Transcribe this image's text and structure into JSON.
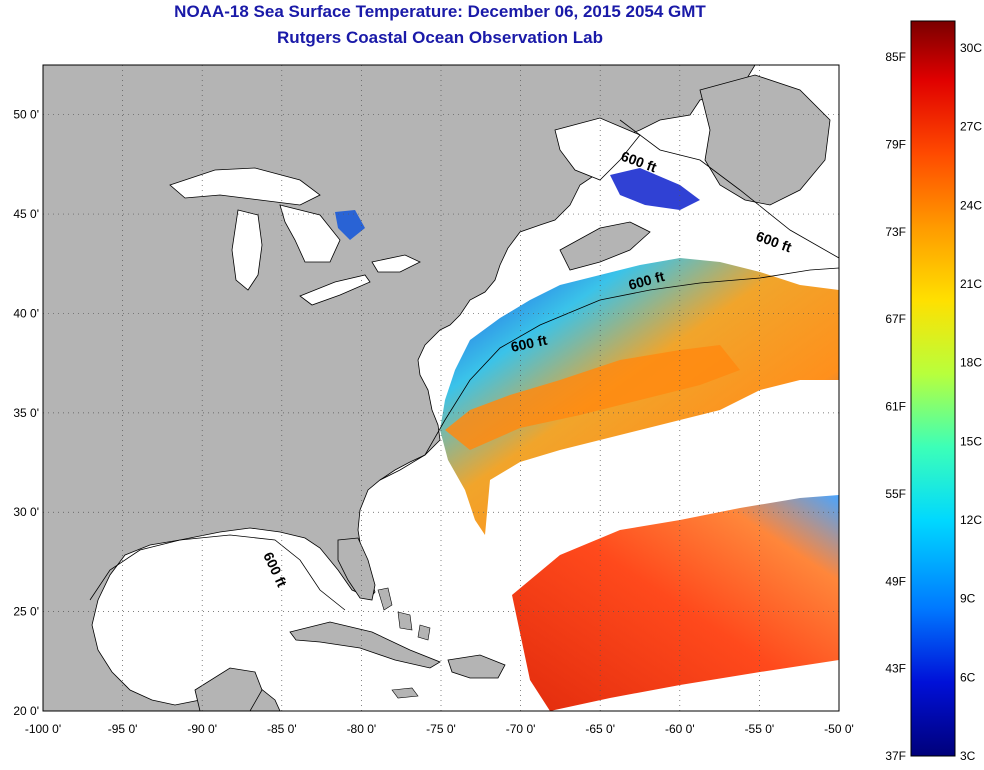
{
  "title": "NOAA-18 Sea Surface Temperature:  December 06, 2015 2054 GMT",
  "subtitle": "Rutgers Coastal Ocean Observation Lab",
  "axes": {
    "x_ticks": [
      "-100 0'",
      "-95 0'",
      "-90 0'",
      "-85 0'",
      "-80 0'",
      "-75 0'",
      "-70 0'",
      "-65 0'",
      "-60 0'",
      "-55 0'",
      "-50 0'"
    ],
    "y_ticks": [
      "50 0'",
      "45 0'",
      "40 0'",
      "35 0'",
      "30 0'",
      "25 0'",
      "20 0'"
    ],
    "lon_range": [
      -100,
      -50
    ],
    "lat_range": [
      20,
      52.5
    ],
    "grid": "dotted"
  },
  "contour_labels": [
    "600 ft",
    "600 ft",
    "600 ft",
    "600 ft",
    "600 ft"
  ],
  "colorbar": {
    "f_labels": [
      "85F",
      "79F",
      "73F",
      "67F",
      "61F",
      "55F",
      "49F",
      "43F",
      "37F"
    ],
    "c_labels": [
      "30C",
      "27C",
      "24C",
      "21C",
      "18C",
      "15C",
      "12C",
      "9C",
      "6C",
      "3C"
    ],
    "colors": [
      "#7a0000",
      "#e00000",
      "#ff4a00",
      "#ff9a00",
      "#ffe000",
      "#b8ff3c",
      "#3cffb8",
      "#00d8ff",
      "#0078ff",
      "#0010d8",
      "#00007a"
    ]
  },
  "land_color": "#b4b4b4"
}
